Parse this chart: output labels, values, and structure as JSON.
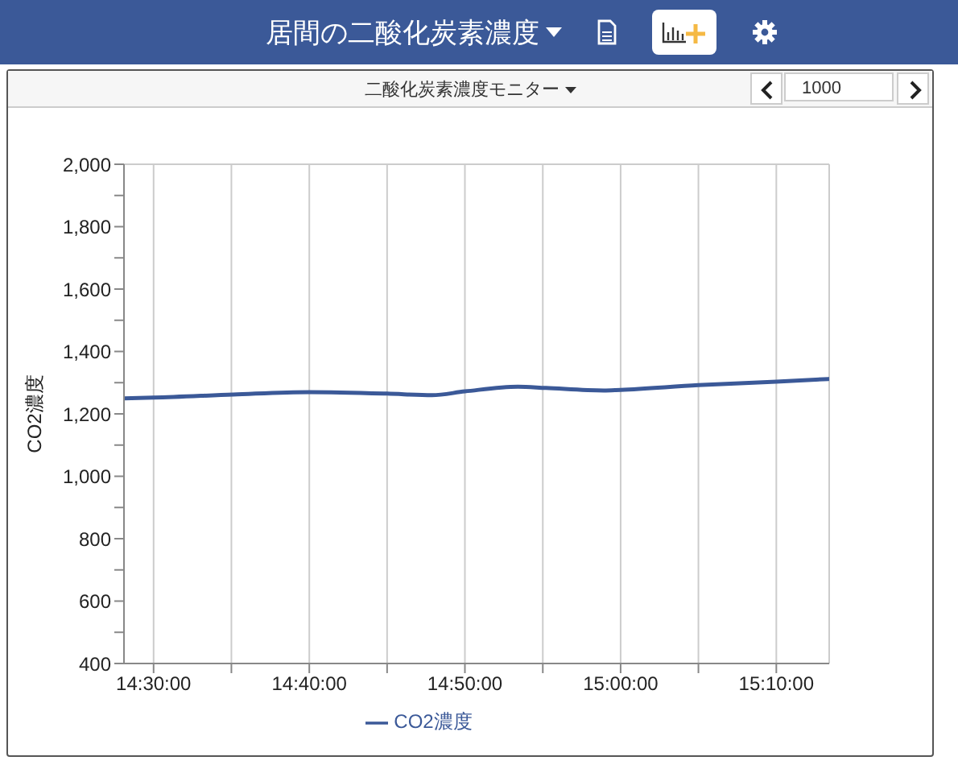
{
  "chart_data": {
    "type": "line",
    "title": "居間の二酸化炭素濃度",
    "subtitle": "二酸化炭素濃度モニター",
    "ylabel": "CO2濃度",
    "annotations": [
      "1000"
    ],
    "x": [
      14.4683,
      14.5,
      14.585,
      14.6667,
      14.75,
      14.798,
      14.8333,
      14.89,
      14.92,
      14.982,
      15.0,
      15.0833,
      15.1667,
      15.2233
    ],
    "series": [
      {
        "name": "CO2濃度",
        "color": "#3b5998",
        "values": [
          1250,
          1252,
          1262,
          1270,
          1265,
          1260,
          1272,
          1287,
          1283,
          1275,
          1277,
          1292,
          1303,
          1312
        ]
      }
    ],
    "xlim": [
      14.4683,
      15.2233
    ],
    "xticks": [
      {
        "value": 14.5,
        "label": "14:30:00"
      },
      {
        "value": 14.5833,
        "label": null
      },
      {
        "value": 14.6667,
        "label": "14:40:00"
      },
      {
        "value": 14.75,
        "label": null
      },
      {
        "value": 14.8333,
        "label": "14:50:00"
      },
      {
        "value": 14.9167,
        "label": null
      },
      {
        "value": 15.0,
        "label": "15:00:00"
      },
      {
        "value": 15.0833,
        "label": null
      },
      {
        "value": 15.1667,
        "label": "15:10:00"
      }
    ],
    "ylim": [
      400,
      2000
    ],
    "yticks": [
      {
        "value": 400,
        "label": "400"
      },
      {
        "value": 500,
        "label": null
      },
      {
        "value": 600,
        "label": "600"
      },
      {
        "value": 700,
        "label": null
      },
      {
        "value": 800,
        "label": "800"
      },
      {
        "value": 900,
        "label": null
      },
      {
        "value": 1000,
        "label": "1,000"
      },
      {
        "value": 1100,
        "label": null
      },
      {
        "value": 1200,
        "label": "1,200"
      },
      {
        "value": 1300,
        "label": null
      },
      {
        "value": 1400,
        "label": "1,400"
      },
      {
        "value": 1500,
        "label": null
      },
      {
        "value": 1600,
        "label": "1,600"
      },
      {
        "value": 1700,
        "label": null
      },
      {
        "value": 1800,
        "label": "1,800"
      },
      {
        "value": 1900,
        "label": null
      },
      {
        "value": 2000,
        "label": "2,000"
      }
    ],
    "grid": true,
    "legend": "bottom",
    "marker": "none",
    "line_style": "solid"
  }
}
